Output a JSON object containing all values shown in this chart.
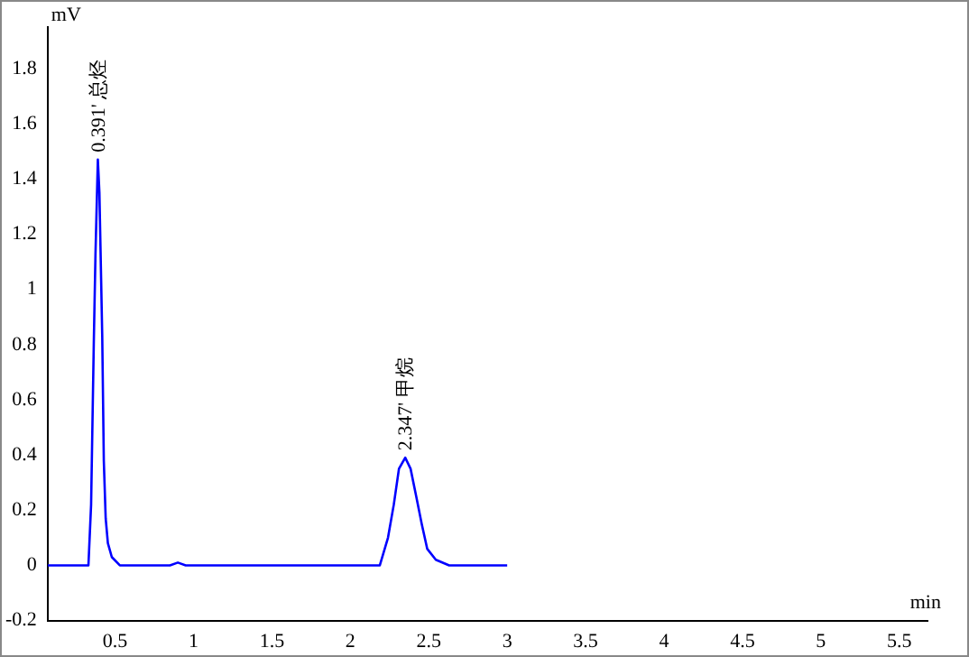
{
  "chart_data": {
    "type": "line",
    "xlabel": "min",
    "ylabel": "mV",
    "x": [
      0.07,
      0.33,
      0.347,
      0.364,
      0.375,
      0.39,
      0.4,
      0.418,
      0.428,
      0.44,
      0.454,
      0.479,
      0.53,
      0.85,
      0.9,
      0.95,
      2.188,
      2.24,
      2.277,
      2.31,
      2.35,
      2.384,
      2.42,
      2.455,
      2.49,
      2.545,
      2.63,
      3.0
    ],
    "series": [
      {
        "color": "#0000ff",
        "values": [
          0,
          0,
          0.22,
          0.8,
          1.13,
          1.47,
          1.35,
          0.83,
          0.38,
          0.17,
          0.08,
          0.03,
          0,
          0,
          0.01,
          0,
          0,
          0.1,
          0.22,
          0.35,
          0.39,
          0.35,
          0.25,
          0.15,
          0.06,
          0.02,
          0,
          0
        ]
      }
    ],
    "xlim": [
      0.07,
      5.68
    ],
    "xticks": [
      0.5,
      1,
      1.5,
      2,
      2.5,
      3,
      3.5,
      4,
      4.5,
      5,
      5.5
    ],
    "ylim": [
      -0.2,
      1.95
    ],
    "yticks": [
      -0.2,
      0,
      0.2,
      0.4,
      0.6,
      0.8,
      1,
      1.2,
      1.4,
      1.6,
      1.8
    ],
    "grid": false,
    "legend": false,
    "marker": "none",
    "line_style": "solid",
    "annotations": [
      {
        "text": "0.391' 总烃",
        "x": 0.391,
        "y": 1.47
      },
      {
        "text": "2.347' 甲烷",
        "x": 2.347,
        "y": 0.39
      }
    ]
  }
}
